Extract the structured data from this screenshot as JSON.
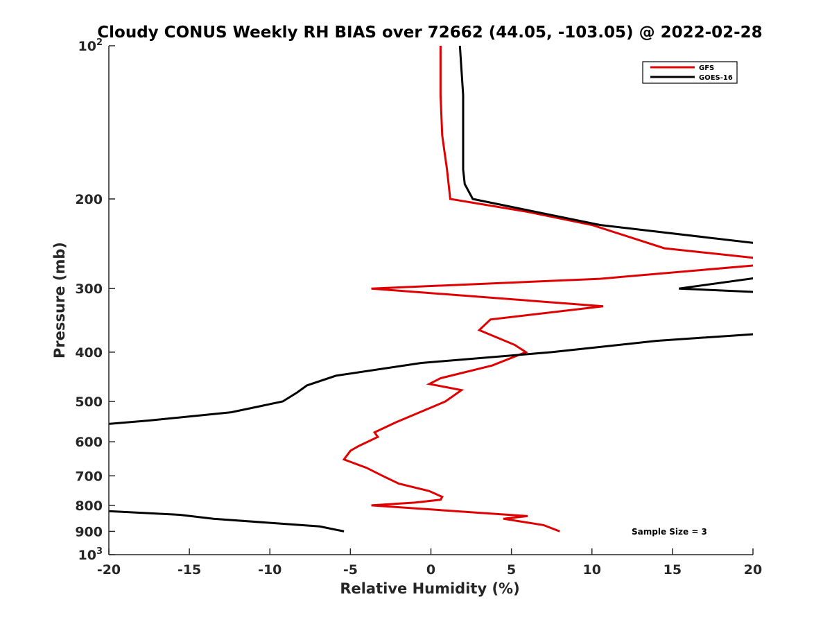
{
  "chart_data": {
    "type": "line",
    "title": "Cloudy CONUS Weekly RH BIAS over 72662 (44.05, -103.05) @ 2022-02-28",
    "xlabel": "Relative Humidity (%)",
    "ylabel": "Pressure (mb)",
    "xlim": [
      -20,
      20
    ],
    "ylim": [
      100,
      1000
    ],
    "y_scale": "log",
    "y_reversed": true,
    "grid": false,
    "legend_position": "top-right",
    "x_ticks": [
      "-20",
      "-15",
      "-10",
      "-5",
      "0",
      "5",
      "10",
      "15",
      "20"
    ],
    "y_ticks": [
      {
        "value": 100,
        "base": "10",
        "exp": "2"
      },
      {
        "value": 200,
        "label": "200"
      },
      {
        "value": 300,
        "label": "300"
      },
      {
        "value": 400,
        "label": "400"
      },
      {
        "value": 500,
        "label": "500"
      },
      {
        "value": 600,
        "label": "600"
      },
      {
        "value": 700,
        "label": "700"
      },
      {
        "value": 800,
        "label": "800"
      },
      {
        "value": 900,
        "label": "900"
      },
      {
        "value": 1000,
        "base": "10",
        "exp": "3"
      }
    ],
    "series": [
      {
        "name": "GFS",
        "color": "#e00000",
        "points": [
          [
            0.6,
            100
          ],
          [
            0.6,
            125
          ],
          [
            0.7,
            150
          ],
          [
            1.0,
            175
          ],
          [
            1.2,
            200
          ],
          [
            6.0,
            212
          ],
          [
            10.0,
            225
          ],
          [
            14.5,
            250
          ],
          [
            20.5,
            262
          ],
          [
            20.2,
            270
          ],
          [
            10.5,
            287
          ],
          [
            -3.7,
            300
          ],
          [
            10.7,
            325
          ],
          [
            3.7,
            345
          ],
          [
            3.0,
            362
          ],
          [
            5.2,
            387
          ],
          [
            5.9,
            400
          ],
          [
            3.8,
            425
          ],
          [
            0.6,
            450
          ],
          [
            -0.1,
            462
          ],
          [
            1.9,
            475
          ],
          [
            0.9,
            500
          ],
          [
            -2.2,
            550
          ],
          [
            -3.5,
            575
          ],
          [
            -3.3,
            587
          ],
          [
            -4.5,
            612
          ],
          [
            -5.0,
            625
          ],
          [
            -5.4,
            650
          ],
          [
            -4.0,
            675
          ],
          [
            -3.0,
            700
          ],
          [
            -2.0,
            725
          ],
          [
            -0.1,
            750
          ],
          [
            0.7,
            770
          ],
          [
            0.6,
            780
          ],
          [
            -1.0,
            790
          ],
          [
            -3.7,
            800
          ],
          [
            6.0,
            840
          ],
          [
            4.5,
            850
          ],
          [
            7.0,
            875
          ],
          [
            8.0,
            900
          ]
        ]
      },
      {
        "name": "GOES-16",
        "color": "#000000",
        "points": [
          [
            1.8,
            100
          ],
          [
            2.0,
            125
          ],
          [
            2.0,
            150
          ],
          [
            2.0,
            175
          ],
          [
            2.1,
            187
          ],
          [
            2.6,
            200
          ],
          [
            10.5,
            225
          ],
          [
            20.5,
            245
          ],
          [
            20.5,
            285
          ],
          [
            15.4,
            300
          ],
          [
            20.5,
            305
          ],
          [
            20.5,
            368
          ],
          [
            14.0,
            380
          ],
          [
            7.5,
            400
          ],
          [
            -0.6,
            420
          ],
          [
            -5.9,
            445
          ],
          [
            -7.7,
            465
          ],
          [
            -8.3,
            480
          ],
          [
            -9.2,
            500
          ],
          [
            -12.4,
            525
          ],
          [
            -17.5,
            545
          ],
          [
            -20.5,
            555
          ],
          [
            -20.5,
            820
          ],
          [
            -15.6,
            835
          ],
          [
            -13.5,
            850
          ],
          [
            -6.9,
            880
          ],
          [
            -5.4,
            900
          ]
        ]
      }
    ],
    "annotation": "Sample Size = 3"
  }
}
